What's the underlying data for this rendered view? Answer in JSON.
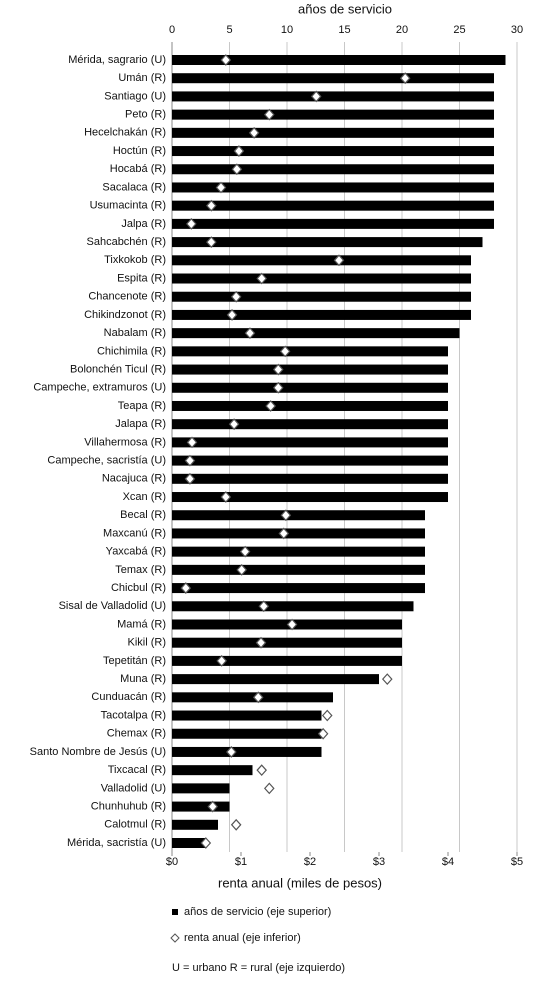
{
  "chart_data": {
    "type": "bar",
    "x2_label": "años de servicio",
    "x_label": "renta anual (miles de pesos)",
    "note": "U = urbano R = rural (eje izquierdo)",
    "categories": [
      "Mérida, sagrario (U)",
      "Umán (R)",
      "Santiago (U)",
      "Peto (R)",
      "Hecelchakán (R)",
      "Hoctún (R)",
      "Hocabá (R)",
      "Sacalaca (R)",
      "Usumacinta (R)",
      "Jalpa (R)",
      "Sahcabchén (R)",
      "Tixkokob (R)",
      "Espita (R)",
      "Chancenote (R)",
      "Chikindzonot (R)",
      "Nabalam (R)",
      "Chichimila (R)",
      "Bolonchén Ticul (R)",
      "Campeche, extramuros (U)",
      "Teapa (R)",
      "Jalapa (R)",
      "Villahermosa (R)",
      "Campeche, sacristía (U)",
      "Nacajuca (R)",
      "Xcan (R)",
      "Becal (R)",
      "Maxcanú (R)",
      "Yaxcabá (R)",
      "Temax (R)",
      "Chicbul (R)",
      "Sisal de Valladolid (U)",
      "Mamá (R)",
      "Kikil (R)",
      "Tepetitán (R)",
      "Muna (R)",
      "Cunduacán (R)",
      "Tacotalpa (R)",
      "Chemax (R)",
      "Santo Nombre de Jesús (U)",
      "Tixcacal (R)",
      "Valladolid (U)",
      "Chunhuhub (R)",
      "Calotmul (R)",
      "Mérida, sacristía (U)"
    ],
    "series": [
      {
        "name": "años de servicio (eje superior)",
        "color": "#000000",
        "axis": "x2",
        "values": [
          29,
          28,
          28,
          28,
          28,
          28,
          28,
          28,
          28,
          28,
          27,
          26,
          26,
          26,
          26,
          25,
          24,
          24,
          24,
          24,
          24,
          24,
          24,
          24,
          24,
          22,
          22,
          22,
          22,
          22,
          21,
          20,
          20,
          20,
          18,
          14,
          13,
          13,
          13,
          7,
          5,
          5,
          4,
          3
        ]
      },
      {
        "name": "renta anual (eje inferior)",
        "color": "#ffffff",
        "axis": "x",
        "values": [
          0.78,
          3.38,
          2.09,
          1.41,
          1.19,
          0.97,
          0.94,
          0.71,
          0.57,
          0.28,
          0.57,
          2.42,
          1.3,
          0.93,
          0.87,
          1.13,
          1.64,
          1.54,
          1.54,
          1.43,
          0.9,
          0.29,
          0.26,
          0.26,
          0.78,
          1.65,
          1.62,
          1.06,
          1.01,
          0.2,
          1.33,
          1.74,
          1.29,
          0.72,
          3.12,
          1.25,
          2.25,
          2.19,
          0.86,
          1.3,
          1.41,
          0.59,
          0.93,
          0.49
        ]
      }
    ],
    "x2lim": [
      0,
      30
    ],
    "x2ticks": [
      0,
      5,
      10,
      15,
      20,
      25,
      30
    ],
    "xlim": [
      0,
      5
    ],
    "xticks": [
      {
        "value": 0,
        "label": "$0"
      },
      {
        "value": 1,
        "label": "$1"
      },
      {
        "value": 2,
        "label": "$2"
      },
      {
        "value": 3,
        "label": "$3"
      },
      {
        "value": 4,
        "label": "$4"
      },
      {
        "value": 5,
        "label": "$5"
      }
    ],
    "grid": true
  }
}
